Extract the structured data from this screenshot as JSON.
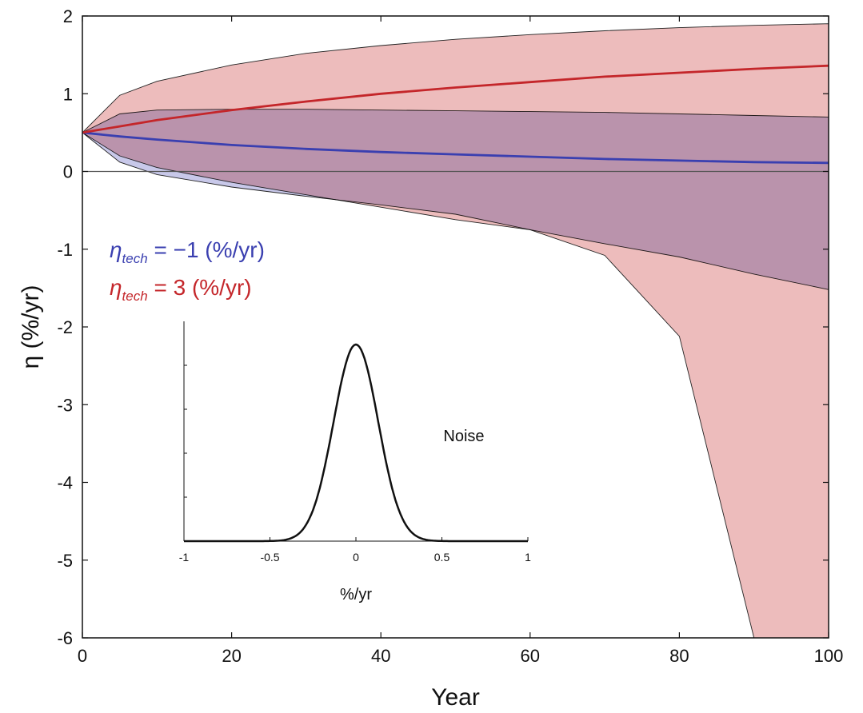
{
  "chart_data": [
    {
      "type": "area",
      "title": "",
      "xlabel": "Year",
      "ylabel": "η (%/yr)",
      "xlim": [
        0,
        100
      ],
      "ylim": [
        -6,
        2
      ],
      "xticks": [
        "0",
        "20",
        "40",
        "60",
        "80",
        "100"
      ],
      "yticks": [
        "2",
        "1",
        "0",
        "-1",
        "-2",
        "-3",
        "-4",
        "-5",
        "-6"
      ],
      "grid": false,
      "reference_line_y": 0,
      "legend_placement": "middle-left",
      "x": [
        0,
        5,
        10,
        20,
        30,
        40,
        50,
        60,
        70,
        80,
        90,
        100
      ],
      "series": [
        {
          "name": "η_tech = −1 (%/yr)",
          "legend_prefix": "η",
          "legend_subscript": "tech",
          "legend_suffix": " = −1 (%/yr)",
          "color": "#3a3fb0",
          "band_color": "#a7a7dc",
          "mean": [
            0.5,
            0.45,
            0.41,
            0.34,
            0.29,
            0.25,
            0.22,
            0.19,
            0.16,
            0.14,
            0.12,
            0.11
          ],
          "upper": [
            0.5,
            0.74,
            0.79,
            0.8,
            0.8,
            0.79,
            0.78,
            0.77,
            0.76,
            0.74,
            0.72,
            0.7
          ],
          "lower": [
            0.5,
            0.12,
            -0.04,
            -0.2,
            -0.32,
            -0.43,
            -0.55,
            -0.75,
            -0.93,
            -1.1,
            -1.32,
            -1.52
          ]
        },
        {
          "name": "η_tech = 3 (%/yr)",
          "legend_prefix": "η",
          "legend_subscript": "tech",
          "legend_suffix": " = 3 (%/yr)",
          "color": "#c4262a",
          "band_color": "#edbcbc",
          "mean": [
            0.5,
            0.58,
            0.66,
            0.79,
            0.9,
            1.0,
            1.08,
            1.15,
            1.22,
            1.27,
            1.32,
            1.36
          ],
          "upper": [
            0.5,
            0.98,
            1.16,
            1.37,
            1.52,
            1.62,
            1.7,
            1.76,
            1.81,
            1.85,
            1.88,
            1.9
          ],
          "lower": [
            0.5,
            0.2,
            0.05,
            -0.14,
            -0.3,
            -0.46,
            -0.62,
            -0.75,
            -1.08,
            -2.12,
            -6.0,
            -6.0
          ]
        }
      ]
    },
    {
      "type": "line",
      "title": "Noise",
      "xlabel": "%/yr",
      "ylabel": "",
      "xlim": [
        -1,
        1
      ],
      "xticks": [
        "-1",
        "-0.5",
        "0",
        "0.5",
        "1"
      ],
      "grid": false,
      "distribution": "gaussian",
      "mean": 0,
      "std": 0.13,
      "color": "#111111"
    }
  ]
}
